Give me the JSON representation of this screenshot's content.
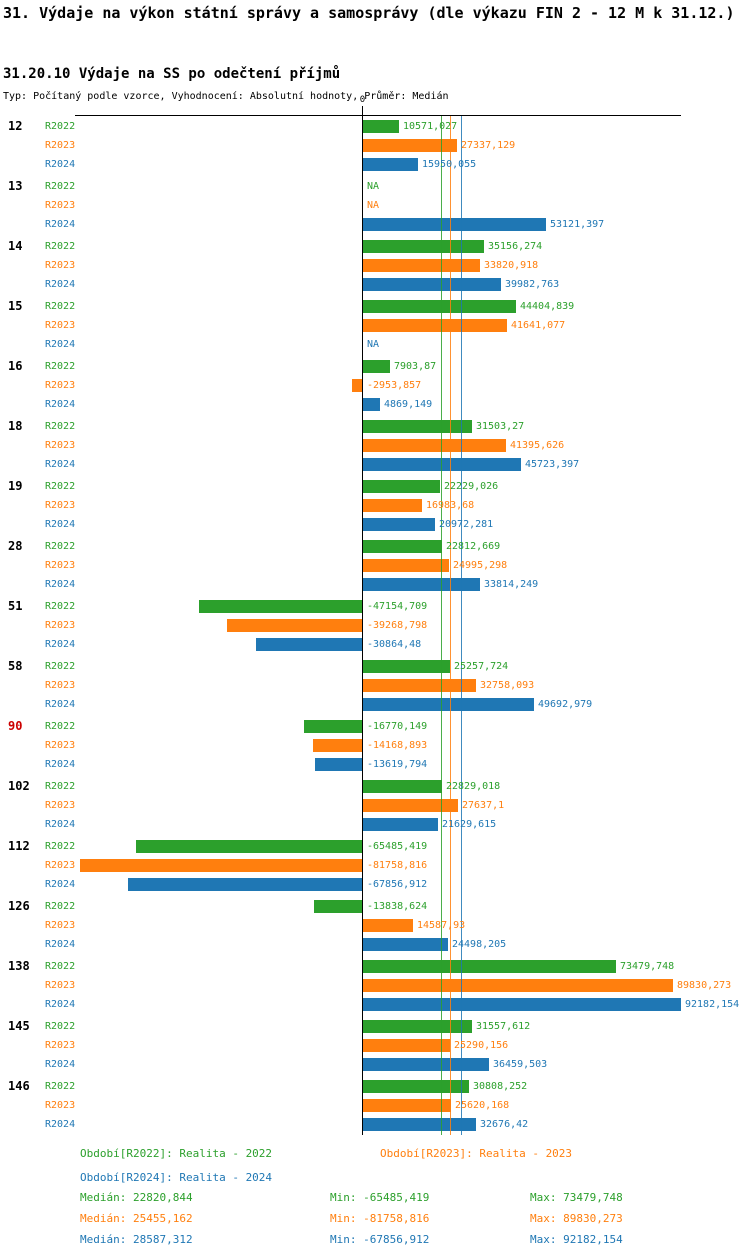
{
  "title": "31. Výdaje na výkon státní správy a samosprávy (dle výkazu FIN 2 - 12 M k 31.12.)",
  "subtitle": "31.20.10 Výdaje na SS po odečtení příjmů",
  "meta": "Typ: Počítaný podle vzorce, Vyhodnocení: Absolutní hodnoty, Průměr: Medián",
  "chart_data": {
    "type": "bar",
    "orientation": "horizontal",
    "zero_label": "0",
    "highlight_color": "#cc0000",
    "value_axis": {
      "zero": 0,
      "max_extent": 92182.154
    },
    "series": [
      {
        "key": "R2022",
        "name": "Realita - 2022",
        "color": "#2ca02c",
        "median": 22820.844
      },
      {
        "key": "R2023",
        "name": "Realita - 2023",
        "color": "#ff7f0e",
        "median": 25455.162
      },
      {
        "key": "R2024",
        "name": "Realita - 2024",
        "color": "#1f77b4",
        "median": 28587.312
      }
    ],
    "groups": [
      {
        "id": "12",
        "highlight": false,
        "values": [
          "10571,027",
          "27337,129",
          "15950,055"
        ]
      },
      {
        "id": "13",
        "highlight": false,
        "values": [
          "NA",
          "NA",
          "53121,397"
        ]
      },
      {
        "id": "14",
        "highlight": false,
        "values": [
          "35156,274",
          "33820,918",
          "39982,763"
        ]
      },
      {
        "id": "15",
        "highlight": false,
        "values": [
          "44404,839",
          "41641,077",
          "NA"
        ]
      },
      {
        "id": "16",
        "highlight": false,
        "values": [
          "7903,87",
          "-2953,857",
          "4869,149"
        ]
      },
      {
        "id": "18",
        "highlight": false,
        "values": [
          "31503,27",
          "41395,626",
          "45723,397"
        ]
      },
      {
        "id": "19",
        "highlight": false,
        "values": [
          "22229,026",
          "16983,68",
          "20972,281"
        ]
      },
      {
        "id": "28",
        "highlight": false,
        "values": [
          "22812,669",
          "24995,298",
          "33814,249"
        ]
      },
      {
        "id": "51",
        "highlight": false,
        "values": [
          "-47154,709",
          "-39268,798",
          "-30864,48"
        ]
      },
      {
        "id": "58",
        "highlight": false,
        "values": [
          "25257,724",
          "32758,093",
          "49692,979"
        ]
      },
      {
        "id": "90",
        "highlight": true,
        "values": [
          "-16770,149",
          "-14168,893",
          "-13619,794"
        ]
      },
      {
        "id": "102",
        "highlight": false,
        "values": [
          "22829,018",
          "27637,1",
          "21629,615"
        ]
      },
      {
        "id": "112",
        "highlight": false,
        "values": [
          "-65485,419",
          "-81758,816",
          "-67856,912"
        ]
      },
      {
        "id": "126",
        "highlight": false,
        "values": [
          "-13838,624",
          "14587,93",
          "24498,205"
        ]
      },
      {
        "id": "138",
        "highlight": false,
        "values": [
          "73479,748",
          "89830,273",
          "92182,154"
        ]
      },
      {
        "id": "145",
        "highlight": false,
        "values": [
          "31557,612",
          "25290,156",
          "36459,503"
        ]
      },
      {
        "id": "146",
        "highlight": false,
        "values": [
          "30808,252",
          "25620,168",
          "32676,42"
        ]
      }
    ]
  },
  "legend": {
    "entries": [
      {
        "series": "R2022",
        "label": "Období[R2022]: Realita - 2022"
      },
      {
        "series": "R2023",
        "label": "Období[R2023]: Realita - 2023"
      },
      {
        "series": "R2024",
        "label": "Období[R2024]: Realita - 2024"
      }
    ],
    "stats": [
      {
        "series": "R2022",
        "median": "Medián: 22820,844",
        "min": "Min: -65485,419",
        "max": "Max: 73479,748"
      },
      {
        "series": "R2023",
        "median": "Medián: 25455,162",
        "min": "Min: -81758,816",
        "max": "Max: 89830,273"
      },
      {
        "series": "R2024",
        "median": "Medián: 28587,312",
        "min": "Min: -67856,912",
        "max": "Max: 92182,154"
      }
    ]
  }
}
